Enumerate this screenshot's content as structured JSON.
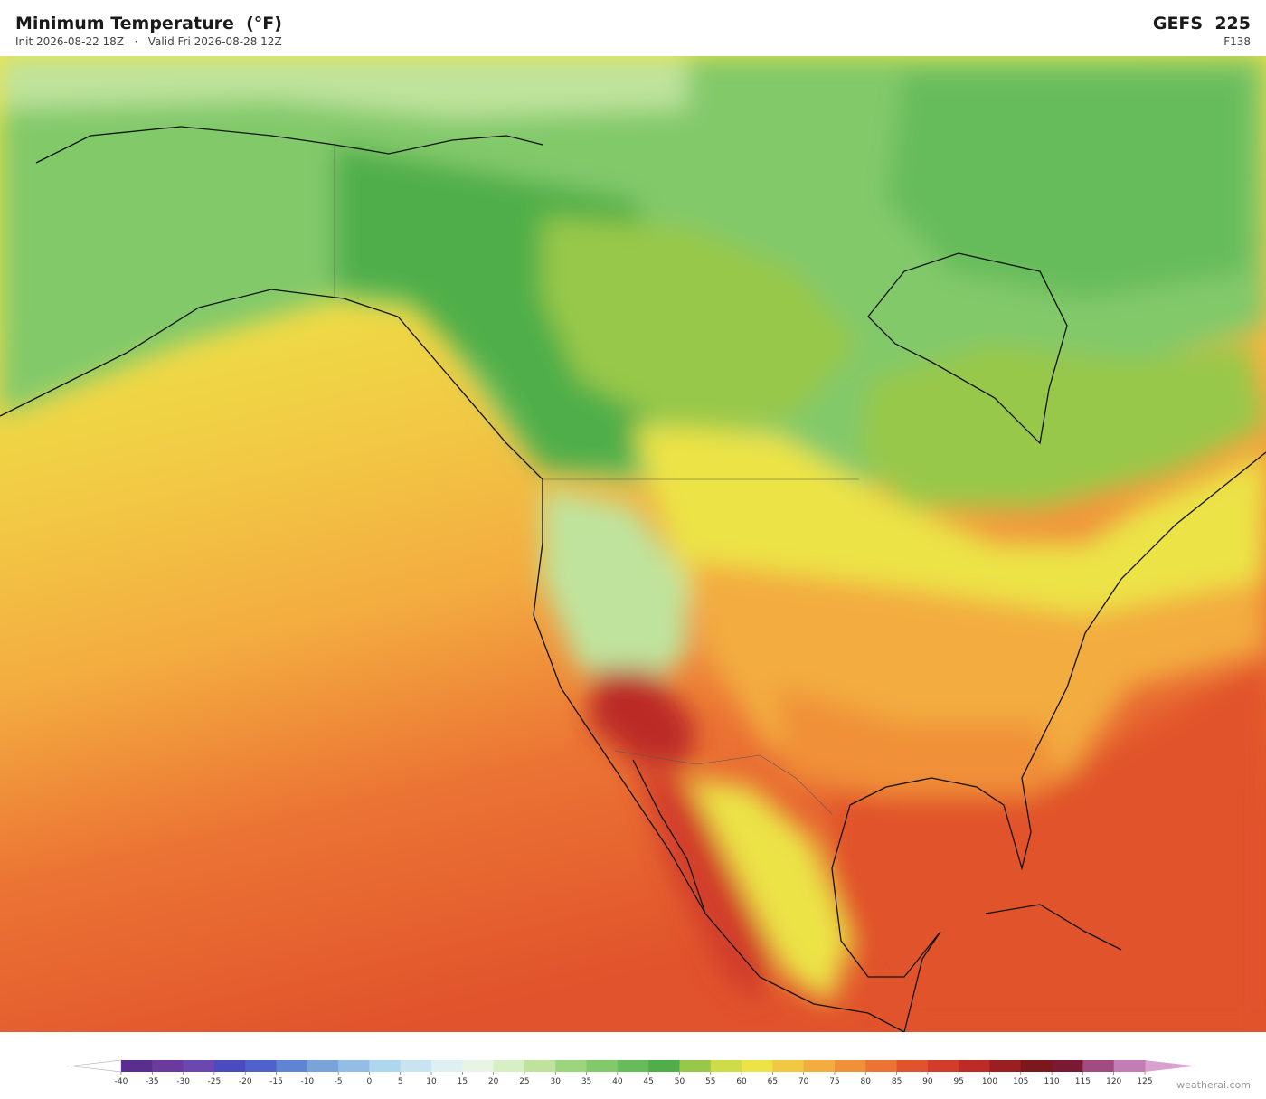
{
  "header": {
    "title": "Minimum Temperature  (°F)",
    "init": "Init 2026-08-22 18Z",
    "separator": "·",
    "valid": "Valid Fri 2026-08-28 12Z",
    "model": "GEFS  225",
    "forecast_hour": "F138"
  },
  "colorbar": {
    "ticks": [
      -40,
      -35,
      -30,
      -25,
      -20,
      -15,
      -10,
      -5,
      0,
      5,
      10,
      15,
      20,
      25,
      30,
      35,
      40,
      45,
      50,
      55,
      60,
      65,
      70,
      75,
      80,
      85,
      90,
      95,
      100,
      105,
      110,
      115,
      120,
      125
    ],
    "colors": [
      "#5a2d91",
      "#6b3a9e",
      "#6a48b0",
      "#4b4bc0",
      "#4f62cc",
      "#5f84d4",
      "#7aa3da",
      "#93bde4",
      "#aed6ee",
      "#c8e4f0",
      "#dff0f2",
      "#e8f5e4",
      "#d7efc4",
      "#bfe39c",
      "#9dd57c",
      "#82c96a",
      "#66bb5a",
      "#4fae4a",
      "#98c84a",
      "#cddc48",
      "#ece347",
      "#f2c744",
      "#f3ac40",
      "#f09038",
      "#eb7434",
      "#e1532c",
      "#d23d29",
      "#bc2b26",
      "#9b1e20",
      "#7c171c",
      "#7a1a32",
      "#a24b80",
      "#c47cb4"
    ]
  },
  "footer": {
    "watermark": "weatherai.com"
  }
}
